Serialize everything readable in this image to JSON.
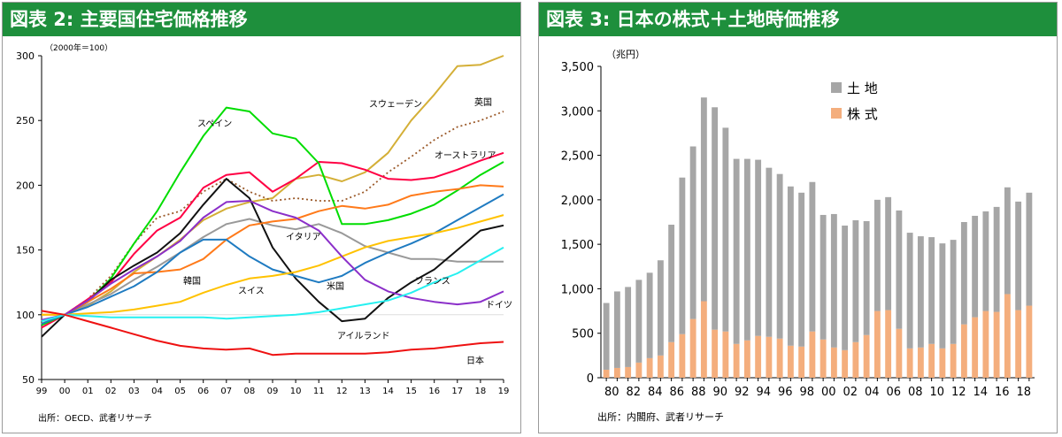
{
  "panel1": {
    "title": "図表 2: 主要国住宅価格推移",
    "source": "出所：OECD、武者リサーチ",
    "unit_label": "（2000年＝100）"
  },
  "panel2": {
    "title": "図表 3: 日本の株式＋土地時価推移",
    "source": "出所：内閣府、武者リサーチ",
    "unit_label": "（兆円）"
  },
  "chart_data": [
    {
      "type": "line",
      "title": "図表 2: 主要国住宅価格推移",
      "ylabel": "（2000年＝100）",
      "ylim": [
        50,
        300
      ],
      "yticks": [
        50,
        100,
        150,
        200,
        250,
        300
      ],
      "categories": [
        "99",
        "00",
        "01",
        "02",
        "03",
        "04",
        "05",
        "06",
        "07",
        "08",
        "09",
        "10",
        "11",
        "12",
        "13",
        "14",
        "15",
        "16",
        "17",
        "18",
        "19"
      ],
      "series": [
        {
          "name": "スウェーデン",
          "color": "#d4af37",
          "dash": false,
          "values": [
            93,
            100,
            107,
            118,
            133,
            145,
            158,
            173,
            182,
            187,
            190,
            205,
            208,
            203,
            210,
            225,
            250,
            270,
            292,
            293,
            300
          ]
        },
        {
          "name": "英国",
          "color": "#9b5a2a",
          "dash": true,
          "values": [
            90,
            100,
            112,
            130,
            155,
            175,
            180,
            195,
            205,
            195,
            188,
            190,
            188,
            188,
            195,
            210,
            222,
            235,
            245,
            250,
            257
          ]
        },
        {
          "name": "オーストラリア",
          "color": "#ff0044",
          "dash": false,
          "values": [
            90,
            100,
            112,
            125,
            147,
            165,
            175,
            198,
            208,
            210,
            195,
            205,
            218,
            217,
            212,
            205,
            204,
            206,
            212,
            219,
            225
          ]
        },
        {
          "name": "スペイン",
          "color": "#00dd00",
          "dash": false,
          "values": [
            92,
            100,
            110,
            128,
            155,
            180,
            210,
            238,
            260,
            257,
            240,
            236,
            217,
            170,
            170,
            173,
            178,
            185,
            196,
            208,
            218
          ]
        },
        {
          "name": "イタリア",
          "color": "#999999",
          "dash": false,
          "values": [
            95,
            100,
            108,
            116,
            127,
            137,
            148,
            160,
            170,
            174,
            169,
            166,
            170,
            163,
            153,
            148,
            143,
            143,
            141,
            141,
            141
          ]
        },
        {
          "name": "アイルランド",
          "color": "#111111",
          "dash": false,
          "values": [
            83,
            100,
            110,
            127,
            138,
            148,
            163,
            185,
            205,
            190,
            152,
            128,
            110,
            95,
            97,
            113,
            125,
            135,
            150,
            165,
            169
          ]
        },
        {
          "name": "韓国",
          "color": "#ff7a1a",
          "dash": false,
          "values": [
            100,
            100,
            110,
            120,
            132,
            133,
            135,
            143,
            158,
            169,
            172,
            174,
            180,
            184,
            182,
            185,
            192,
            195,
            197,
            200,
            199
          ]
        },
        {
          "name": "米国",
          "color": "#1f7bc1",
          "dash": false,
          "values": [
            93,
            100,
            106,
            114,
            122,
            133,
            148,
            158,
            158,
            145,
            135,
            130,
            125,
            130,
            140,
            148,
            155,
            163,
            173,
            183,
            193
          ]
        },
        {
          "name": "スイス",
          "color": "#ffc200",
          "dash": false,
          "values": [
            100,
            100,
            101,
            102,
            104,
            107,
            110,
            117,
            123,
            128,
            130,
            133,
            138,
            145,
            152,
            157,
            160,
            163,
            167,
            172,
            177
          ]
        },
        {
          "name": "ドイツ",
          "color": "#8b2fc9",
          "dash": false,
          "values": [
            96,
            100,
            111,
            124,
            135,
            145,
            157,
            175,
            187,
            188,
            180,
            175,
            165,
            145,
            127,
            118,
            113,
            110,
            108,
            110,
            118
          ]
        },
        {
          "name": "フランス",
          "color": "#26f0f0",
          "dash": false,
          "values": [
            95,
            100,
            99,
            98,
            98,
            98,
            98,
            98,
            97,
            98,
            99,
            100,
            102,
            105,
            108,
            111,
            117,
            125,
            132,
            142,
            152
          ]
        },
        {
          "name": "日本",
          "color": "#ee1111",
          "dash": false,
          "values": [
            103,
            100,
            95,
            90,
            85,
            80,
            76,
            74,
            73,
            74,
            69,
            70,
            70,
            70,
            70,
            71,
            73,
            74,
            76,
            78,
            79
          ]
        }
      ],
      "line_labels": [
        {
          "text": "スウェーデン"
        },
        {
          "text": "英国"
        },
        {
          "text": "オーストラリア"
        },
        {
          "text": "スペイン"
        },
        {
          "text": "イタリア"
        },
        {
          "text": "韓国"
        },
        {
          "text": "スイス"
        },
        {
          "text": "米国"
        },
        {
          "text": "フランス"
        },
        {
          "text": "ドイツ"
        },
        {
          "text": "アイルランド"
        },
        {
          "text": "日本"
        }
      ]
    },
    {
      "type": "bar",
      "stacked": true,
      "title": "図表 3: 日本の株式＋土地時価推移",
      "ylabel": "（兆円）",
      "ylim": [
        0,
        3500
      ],
      "yticks": [
        0,
        500,
        1000,
        1500,
        2000,
        2500,
        3000,
        3500
      ],
      "ytick_labels": [
        "0",
        "500",
        "1,000",
        "1,500",
        "2,000",
        "2,500",
        "3,000",
        "3,500"
      ],
      "categories": [
        "80",
        "81",
        "82",
        "83",
        "84",
        "85",
        "86",
        "87",
        "88",
        "89",
        "90",
        "91",
        "92",
        "93",
        "94",
        "95",
        "96",
        "97",
        "98",
        "99",
        "00",
        "01",
        "02",
        "03",
        "04",
        "05",
        "06",
        "07",
        "08",
        "09",
        "10",
        "11",
        "12",
        "13",
        "14",
        "15",
        "16",
        "17",
        "18",
        "19"
      ],
      "xtick_labels": [
        "80",
        "",
        "82",
        "",
        "84",
        "",
        "86",
        "",
        "88",
        "",
        "90",
        "",
        "92",
        "",
        "94",
        "",
        "96",
        "",
        "98",
        "",
        "00",
        "",
        "02",
        "",
        "04",
        "",
        "06",
        "",
        "08",
        "",
        "10",
        "",
        "12",
        "",
        "14",
        "",
        "16",
        "",
        "18",
        ""
      ],
      "legend_position": "top-center",
      "series": [
        {
          "name": "株 式",
          "color": "#f4ae7d",
          "values": [
            90,
            110,
            120,
            170,
            220,
            250,
            400,
            490,
            660,
            860,
            540,
            520,
            380,
            420,
            470,
            460,
            440,
            360,
            350,
            520,
            430,
            340,
            310,
            400,
            480,
            750,
            760,
            550,
            330,
            340,
            380,
            330,
            380,
            600,
            680,
            750,
            740,
            940,
            760,
            810
          ]
        },
        {
          "name": "土 地",
          "color": "#a6a6a6",
          "values": [
            750,
            860,
            900,
            930,
            960,
            1070,
            1320,
            1760,
            1940,
            2290,
            2500,
            2290,
            2080,
            2040,
            1980,
            1900,
            1850,
            1790,
            1730,
            1680,
            1400,
            1500,
            1400,
            1370,
            1280,
            1250,
            1270,
            1330,
            1300,
            1250,
            1200,
            1180,
            1170,
            1150,
            1140,
            1120,
            1180,
            1200,
            1220,
            1270
          ]
        }
      ]
    }
  ]
}
